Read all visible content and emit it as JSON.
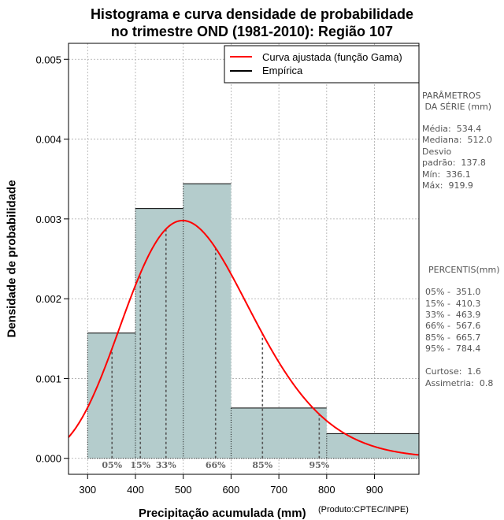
{
  "header": {
    "title_line1": "Histograma e curva densidade de probabilidade",
    "title_line2": "no trimestre OND (1981-2010): Região 107"
  },
  "axes": {
    "xlabel": "Precipitação acumulada (mm)",
    "ylabel": "Densidade de probabilidade",
    "credit": "(Produto:CPTEC/INPE)"
  },
  "chart_data": {
    "type": "histogram",
    "xlim": [
      260,
      993
    ],
    "ylim": [
      -0.0002,
      0.0052
    ],
    "x_ticks": [
      300,
      400,
      500,
      600,
      700,
      800,
      900
    ],
    "y_ticks": [
      0.0,
      0.001,
      0.002,
      0.003,
      0.004,
      0.005
    ],
    "y_tick_labels": [
      "0.000",
      "0.001",
      "0.002",
      "0.003",
      "0.004",
      "0.005"
    ],
    "grid": true,
    "bins": [
      {
        "from": 300,
        "to": 400,
        "density": 0.00157
      },
      {
        "from": 400,
        "to": 500,
        "density": 0.00313
      },
      {
        "from": 500,
        "to": 600,
        "density": 0.00344
      },
      {
        "from": 600,
        "to": 800,
        "density": 0.00063
      },
      {
        "from": 800,
        "to": 1000,
        "density": 0.00031
      }
    ],
    "gamma_fit": {
      "shape": 15.04,
      "rate": 0.02815
    },
    "percentiles": [
      {
        "label": "05%",
        "value": 351.0
      },
      {
        "label": "15%",
        "value": 410.3
      },
      {
        "label": "33%",
        "value": 463.9
      },
      {
        "label": "66%",
        "value": 567.6
      },
      {
        "label": "85%",
        "value": 665.7
      },
      {
        "label": "95%",
        "value": 784.4
      }
    ],
    "legend": {
      "position": "top-right",
      "entries": [
        "Curva ajustada (função Gama)",
        "Empírica"
      ]
    },
    "colors": {
      "bar_fill": "#b4cccc",
      "curve": "#ff0000",
      "grid": "#aaaaaa",
      "empirical": "#000000",
      "percentile_line": "#555555"
    }
  },
  "stats": {
    "params_title_1": "PARÂMETROS",
    "params_title_2": " DA SÉRIE (mm)",
    "media": "Média:  534.4",
    "mediana": "Mediana:  512.0",
    "desvio_1": "Desvio",
    "desvio_2": "padrão:  137.8",
    "min": "Mín:  336.1",
    "max": "Máx:  919.9",
    "percentis_title": "PERCENTIS(mm)",
    "p05": "05% -  351.0",
    "p15": "15% -  410.3",
    "p33": "33% -  463.9",
    "p66": "66% -  567.6",
    "p85": "85% -  665.7",
    "p95": "95% -  784.4",
    "curtose": "Curtose:  1.6",
    "assimetria": "Assimetria:  0.8"
  }
}
